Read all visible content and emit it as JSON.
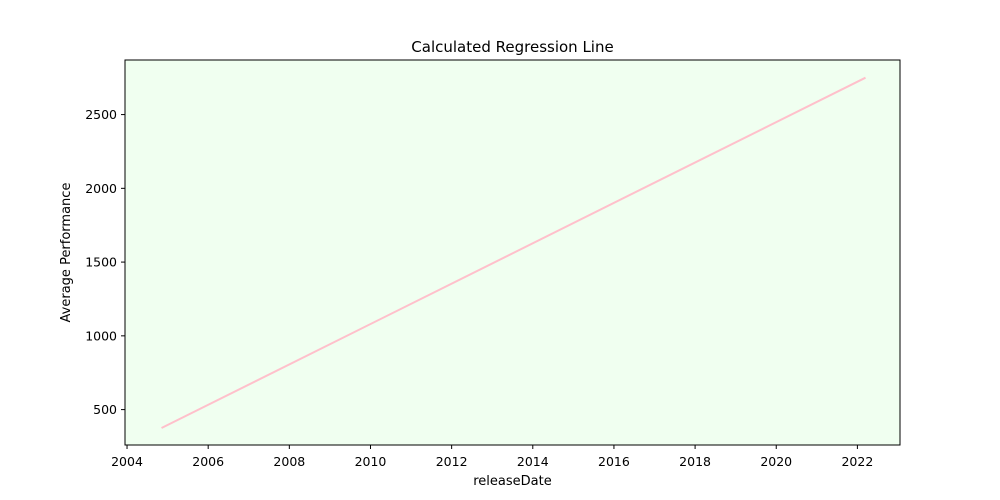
{
  "chart_data": {
    "type": "line",
    "title": "Calculated Regression Line",
    "xlabel": "releaseDate",
    "ylabel": "Average Performance",
    "x_ticks": [
      2004,
      2006,
      2008,
      2010,
      2012,
      2014,
      2016,
      2018,
      2020,
      2022
    ],
    "y_ticks": [
      500,
      1000,
      1500,
      2000,
      2500
    ],
    "xlim": [
      2003.95,
      2023.05
    ],
    "ylim": [
      260,
      2870
    ],
    "grid": false,
    "series": [
      {
        "x": [
          2004.85,
          2022.2
        ],
        "y": [
          375,
          2750
        ]
      }
    ],
    "colors": {
      "plot_background": "#f0fff0",
      "line": "#ffc0cb",
      "axes": "#000000"
    }
  }
}
